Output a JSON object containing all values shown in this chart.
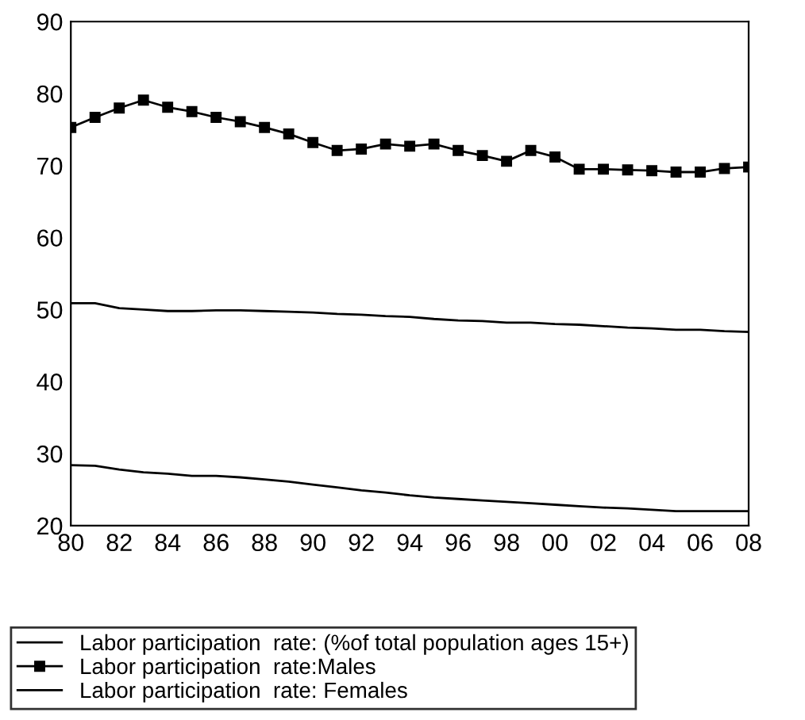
{
  "chart_data": {
    "type": "line",
    "x": [
      1980,
      1981,
      1982,
      1983,
      1984,
      1985,
      1986,
      1987,
      1988,
      1989,
      1990,
      1991,
      1992,
      1993,
      1994,
      1995,
      1996,
      1997,
      1998,
      1999,
      2000,
      2001,
      2002,
      2003,
      2004,
      2005,
      2006,
      2007,
      2008
    ],
    "series": [
      {
        "name": "Labor participation  rate: (%of total population ages 15+)",
        "color": "#000000",
        "marker": "none",
        "values": [
          50.9,
          50.9,
          50.2,
          50.0,
          49.8,
          49.8,
          49.9,
          49.9,
          49.8,
          49.7,
          49.6,
          49.4,
          49.3,
          49.1,
          49.0,
          48.7,
          48.5,
          48.4,
          48.2,
          48.2,
          48.0,
          47.9,
          47.7,
          47.5,
          47.4,
          47.2,
          47.2,
          47.0,
          46.9
        ]
      },
      {
        "name": "Labor participation  rate:Males",
        "color": "#000000",
        "marker": "square",
        "values": [
          75.3,
          76.7,
          78.0,
          79.1,
          78.1,
          77.5,
          76.7,
          76.1,
          75.3,
          74.4,
          73.2,
          72.1,
          72.3,
          73.0,
          72.7,
          73.0,
          72.1,
          71.4,
          70.6,
          72.1,
          71.2,
          69.5,
          69.5,
          69.4,
          69.3,
          69.1,
          69.1,
          69.6,
          69.8
        ]
      },
      {
        "name": "Labor participation  rate: Females",
        "color": "#000000",
        "marker": "none",
        "values": [
          28.4,
          28.3,
          27.8,
          27.4,
          27.2,
          26.9,
          26.9,
          26.7,
          26.4,
          26.1,
          25.7,
          25.3,
          24.9,
          24.6,
          24.2,
          23.9,
          23.7,
          23.5,
          23.3,
          23.1,
          22.9,
          22.7,
          22.5,
          22.4,
          22.2,
          22.0,
          22.0,
          22.0,
          22.0
        ]
      }
    ],
    "xlim": [
      1980,
      2008
    ],
    "xticks": [
      {
        "value": 1980,
        "label": "80"
      },
      {
        "value": 1982,
        "label": "82"
      },
      {
        "value": 1984,
        "label": "84"
      },
      {
        "value": 1986,
        "label": "86"
      },
      {
        "value": 1988,
        "label": "88"
      },
      {
        "value": 1990,
        "label": "90"
      },
      {
        "value": 1992,
        "label": "92"
      },
      {
        "value": 1994,
        "label": "94"
      },
      {
        "value": 1996,
        "label": "96"
      },
      {
        "value": 1998,
        "label": "98"
      },
      {
        "value": 2000,
        "label": "00"
      },
      {
        "value": 2002,
        "label": "02"
      },
      {
        "value": 2004,
        "label": "04"
      },
      {
        "value": 2006,
        "label": "06"
      },
      {
        "value": 2008,
        "label": "08"
      }
    ],
    "ylim": [
      20,
      90
    ],
    "yticks": [
      20,
      30,
      40,
      50,
      60,
      70,
      80,
      90
    ],
    "grid": false,
    "legend": "bottom",
    "line_style": "solid"
  }
}
